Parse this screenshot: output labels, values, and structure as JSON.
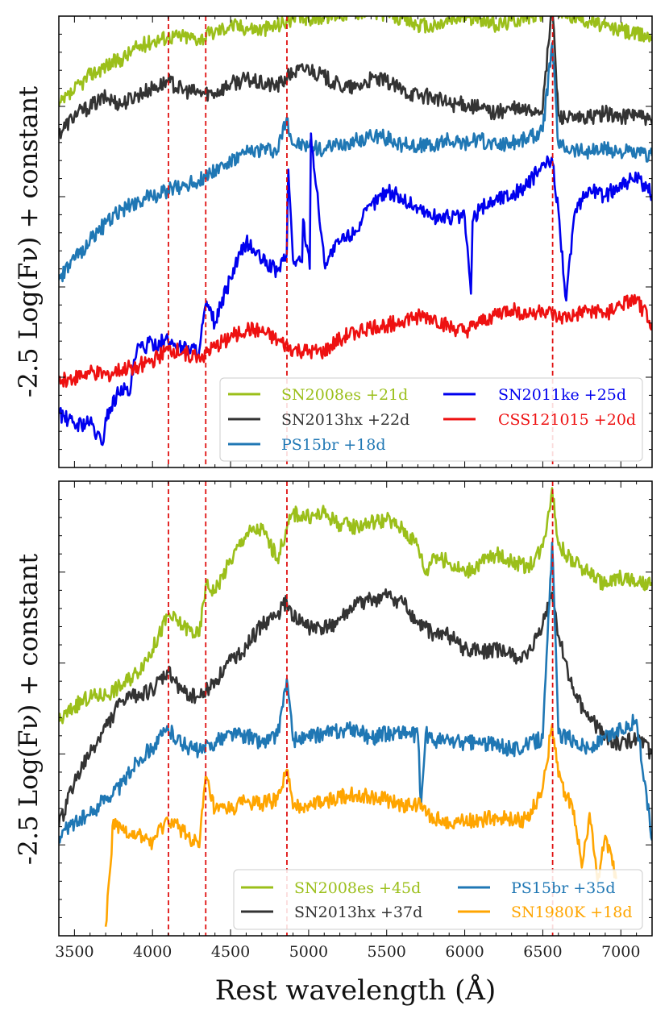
{
  "chart_data": [
    {
      "type": "line",
      "panel": "top",
      "ylabel": "-2.5 Log(Fν) + constant",
      "xlim": [
        3400,
        7200
      ],
      "ylim": [
        0,
        10
      ],
      "vlines": [
        4102,
        4341,
        4861,
        6563
      ],
      "legend_position": "lower-right",
      "series": [
        {
          "name": "SN2008es +21d",
          "color": "#9bbf1a",
          "x": [
            3400,
            3500,
            3600,
            3700,
            3800,
            3900,
            4000,
            4100,
            4200,
            4300,
            4400,
            4500,
            4600,
            4700,
            4800,
            4900,
            5000,
            5100,
            5200,
            5300,
            5400,
            5500,
            5600,
            5700,
            5800,
            5900,
            6000,
            6100,
            6200,
            6300,
            6400,
            6500,
            6560,
            6600,
            6700,
            6800,
            6900,
            7000,
            7100,
            7200
          ],
          "y": [
            8.0,
            8.35,
            8.7,
            8.9,
            9.05,
            9.3,
            9.45,
            9.55,
            9.55,
            9.5,
            9.65,
            9.8,
            9.75,
            9.7,
            9.8,
            9.95,
            9.95,
            10.0,
            10.05,
            10.1,
            10.1,
            10.05,
            9.95,
            9.8,
            9.75,
            9.9,
            10.0,
            9.95,
            9.8,
            9.9,
            10.0,
            10.05,
            10.35,
            10.1,
            10.0,
            9.9,
            9.75,
            9.7,
            9.6,
            9.55
          ]
        },
        {
          "name": "SN2013hx +22d",
          "color": "#333333",
          "x": [
            3400,
            3500,
            3600,
            3700,
            3800,
            3900,
            4000,
            4100,
            4200,
            4300,
            4400,
            4500,
            4600,
            4700,
            4800,
            4900,
            5000,
            5100,
            5200,
            5300,
            5400,
            5500,
            5600,
            5700,
            5800,
            5900,
            6000,
            6100,
            6200,
            6300,
            6400,
            6500,
            6560,
            6600,
            6700,
            6800,
            6900,
            7000,
            7100,
            7200
          ],
          "y": [
            7.4,
            7.8,
            8.0,
            8.2,
            8.05,
            8.25,
            8.4,
            8.55,
            8.35,
            8.3,
            8.3,
            8.5,
            8.6,
            8.5,
            8.45,
            8.75,
            8.85,
            8.65,
            8.45,
            8.4,
            8.6,
            8.55,
            8.35,
            8.25,
            8.2,
            8.05,
            8.05,
            7.95,
            7.85,
            7.95,
            7.9,
            7.95,
            10.3,
            7.8,
            7.7,
            7.75,
            7.85,
            7.75,
            7.85,
            7.6
          ]
        },
        {
          "name": "PS15br +18d",
          "color": "#1f77b4",
          "x": [
            3400,
            3500,
            3600,
            3700,
            3800,
            3900,
            4000,
            4100,
            4200,
            4300,
            4400,
            4500,
            4600,
            4700,
            4800,
            4860,
            4900,
            5000,
            5100,
            5200,
            5300,
            5400,
            5500,
            5600,
            5700,
            5800,
            5900,
            6000,
            6100,
            6200,
            6300,
            6400,
            6500,
            6560,
            6600,
            6700,
            6800,
            6900,
            7000,
            7100,
            7200
          ],
          "y": [
            4.15,
            4.6,
            5.05,
            5.4,
            5.7,
            5.9,
            6.0,
            6.15,
            6.25,
            6.35,
            6.6,
            6.75,
            6.95,
            7.05,
            7.0,
            7.75,
            7.15,
            7.1,
            7.05,
            7.15,
            7.25,
            7.35,
            7.3,
            7.15,
            7.15,
            7.1,
            7.25,
            7.2,
            7.25,
            7.15,
            7.2,
            7.3,
            7.45,
            9.4,
            7.15,
            7.05,
            7.0,
            7.05,
            7.0,
            6.95,
            6.9
          ]
        },
        {
          "name": "SN2011ke +25d",
          "color": "#0000ee",
          "x": [
            3400,
            3500,
            3600,
            3680,
            3700,
            3800,
            3850,
            3900,
            4000,
            4100,
            4200,
            4300,
            4340,
            4400,
            4500,
            4600,
            4700,
            4800,
            4860,
            4870,
            4900,
            4958,
            4965,
            5007,
            5015,
            5100,
            5200,
            5300,
            5400,
            5500,
            5600,
            5700,
            5800,
            5900,
            6000,
            6040,
            6050,
            6100,
            6200,
            6300,
            6400,
            6500,
            6563,
            6600,
            6650,
            6700,
            6800,
            6900,
            7000,
            7100,
            7200
          ],
          "y": [
            1.2,
            0.95,
            1.0,
            0.5,
            1.1,
            1.8,
            1.6,
            2.6,
            2.75,
            2.8,
            2.65,
            2.6,
            3.6,
            3.2,
            4.2,
            5.0,
            4.6,
            4.35,
            4.75,
            6.6,
            4.6,
            4.55,
            5.5,
            4.4,
            7.4,
            4.55,
            5.0,
            5.25,
            5.8,
            6.15,
            5.95,
            5.75,
            5.55,
            5.55,
            5.55,
            3.85,
            5.45,
            5.75,
            5.95,
            6.05,
            6.25,
            6.7,
            6.75,
            5.7,
            3.7,
            5.55,
            6.2,
            6.0,
            6.3,
            6.4,
            6.05
          ]
        },
        {
          "name": "CSS121015 +20d",
          "color": "#ee1111",
          "x": [
            3400,
            3500,
            3600,
            3700,
            3800,
            3900,
            4000,
            4100,
            4200,
            4300,
            4400,
            4500,
            4600,
            4700,
            4800,
            4900,
            5000,
            5100,
            5200,
            5300,
            5400,
            5500,
            5600,
            5700,
            5800,
            5900,
            6000,
            6100,
            6200,
            6300,
            6400,
            6500,
            6600,
            6700,
            6800,
            6900,
            7000,
            7100,
            7200
          ],
          "y": [
            1.9,
            2.0,
            2.1,
            2.05,
            2.15,
            2.25,
            2.35,
            2.6,
            2.55,
            2.45,
            2.65,
            2.9,
            3.05,
            3.0,
            2.8,
            2.6,
            2.55,
            2.55,
            2.85,
            3.0,
            3.1,
            3.15,
            3.25,
            3.35,
            3.3,
            3.1,
            3.0,
            3.2,
            3.4,
            3.5,
            3.4,
            3.5,
            3.3,
            3.35,
            3.5,
            3.4,
            3.6,
            3.7,
            3.2
          ]
        }
      ],
      "legend": {
        "col1": [
          {
            "label": "SN2008es +21d",
            "color": "#9bbf1a"
          },
          {
            "label": "SN2013hx +22d",
            "color": "#333333"
          },
          {
            "label": "PS15br +18d",
            "color": "#1f77b4"
          }
        ],
        "col2": [
          {
            "label": "SN2011ke +25d",
            "color": "#0000ee"
          },
          {
            "label": "CSS121015 +20d",
            "color": "#ee1111"
          }
        ]
      }
    },
    {
      "type": "line",
      "panel": "bottom",
      "ylabel": "-2.5 Log(Fν) + constant",
      "xlabel": "Rest wavelength (Å)",
      "xlim": [
        3400,
        7200
      ],
      "xticks": [
        3500,
        4000,
        4500,
        5000,
        5500,
        6000,
        6500,
        7000
      ],
      "ylim": [
        0,
        10
      ],
      "vlines": [
        4102,
        4341,
        4861,
        6563
      ],
      "legend_position": "lower-right",
      "series": [
        {
          "name": "SN2008es +45d",
          "color": "#9bbf1a",
          "x": [
            3400,
            3500,
            3600,
            3700,
            3800,
            3900,
            4000,
            4100,
            4200,
            4300,
            4340,
            4400,
            4500,
            4600,
            4700,
            4800,
            4860,
            4900,
            5000,
            5100,
            5200,
            5300,
            5400,
            5500,
            5600,
            5700,
            5750,
            5800,
            5900,
            6000,
            6100,
            6200,
            6300,
            6400,
            6500,
            6560,
            6600,
            6700,
            6800,
            6900,
            7000,
            7100,
            7200
          ],
          "y": [
            4.7,
            5.05,
            5.25,
            5.3,
            5.5,
            5.8,
            6.3,
            7.05,
            6.8,
            6.6,
            7.7,
            7.6,
            8.25,
            8.85,
            8.95,
            8.3,
            8.95,
            9.3,
            9.2,
            9.3,
            9.05,
            9.0,
            9.1,
            9.15,
            8.95,
            8.6,
            7.95,
            8.4,
            8.2,
            8.0,
            8.2,
            8.4,
            8.25,
            8.1,
            8.55,
            9.85,
            8.6,
            8.2,
            8.0,
            7.7,
            7.9,
            7.75,
            7.7
          ]
        },
        {
          "name": "SN2013hx +37d",
          "color": "#333333",
          "x": [
            3400,
            3500,
            3600,
            3700,
            3800,
            3900,
            4000,
            4100,
            4200,
            4300,
            4400,
            4500,
            4600,
            4700,
            4800,
            4860,
            4900,
            5000,
            5100,
            5200,
            5300,
            5400,
            5500,
            5600,
            5700,
            5800,
            5900,
            6000,
            6100,
            6200,
            6300,
            6400,
            6500,
            6560,
            6600,
            6700,
            6800,
            6900,
            7000,
            7100,
            7200
          ],
          "y": [
            2.4,
            3.4,
            4.0,
            4.6,
            5.15,
            5.3,
            5.4,
            5.8,
            5.35,
            5.25,
            5.6,
            6.05,
            6.35,
            6.85,
            7.05,
            7.35,
            7.0,
            6.8,
            6.75,
            6.95,
            7.25,
            7.4,
            7.45,
            7.35,
            6.85,
            6.65,
            6.6,
            6.3,
            6.25,
            6.3,
            6.15,
            6.1,
            6.85,
            7.55,
            6.6,
            5.3,
            4.8,
            4.4,
            4.2,
            4.35,
            4.0
          ]
        },
        {
          "name": "PS15br +35d",
          "color": "#1f77b4",
          "x": [
            3400,
            3500,
            3600,
            3700,
            3800,
            3900,
            4000,
            4100,
            4200,
            4300,
            4400,
            4500,
            4600,
            4700,
            4800,
            4860,
            4900,
            5000,
            5100,
            5200,
            5300,
            5400,
            5500,
            5600,
            5700,
            5720,
            5750,
            5800,
            5900,
            6000,
            6100,
            6200,
            6300,
            6400,
            6500,
            6560,
            6600,
            6700,
            6800,
            6900,
            7000,
            7100,
            7200
          ],
          "y": [
            2.2,
            2.5,
            2.65,
            3.05,
            3.3,
            3.85,
            4.15,
            4.55,
            4.2,
            4.05,
            4.25,
            4.45,
            4.4,
            4.25,
            4.4,
            5.65,
            4.3,
            4.35,
            4.45,
            4.5,
            4.55,
            4.35,
            4.45,
            4.5,
            4.4,
            2.85,
            4.45,
            4.3,
            4.3,
            4.25,
            4.25,
            4.2,
            4.1,
            4.2,
            4.35,
            8.65,
            4.45,
            4.3,
            4.1,
            4.35,
            4.55,
            4.75,
            2.1
          ]
        },
        {
          "name": "SN1980K +18d",
          "color": "#ffa500",
          "x": [
            3700,
            3750,
            3800,
            3900,
            4000,
            4100,
            4200,
            4300,
            4340,
            4400,
            4500,
            4600,
            4700,
            4800,
            4860,
            4900,
            5000,
            5100,
            5200,
            5300,
            5400,
            5500,
            5600,
            5700,
            5800,
            5900,
            6000,
            6100,
            6200,
            6300,
            6400,
            6500,
            6560,
            6600,
            6700,
            6750,
            6800,
            6850,
            6900,
            6970
          ],
          "y": [
            0.2,
            2.55,
            2.35,
            2.2,
            2.05,
            2.55,
            2.3,
            1.95,
            3.5,
            2.75,
            2.8,
            2.95,
            2.9,
            3.0,
            3.65,
            2.8,
            2.9,
            2.95,
            3.05,
            3.1,
            3.05,
            3.0,
            2.85,
            2.9,
            2.6,
            2.5,
            2.5,
            2.55,
            2.6,
            2.55,
            2.55,
            3.25,
            4.65,
            3.5,
            2.75,
            1.5,
            2.7,
            1.2,
            2.2,
            1.25
          ]
        }
      ],
      "legend": {
        "col1": [
          {
            "label": "SN2008es +45d",
            "color": "#9bbf1a"
          },
          {
            "label": "SN2013hx +37d",
            "color": "#333333"
          }
        ],
        "col2": [
          {
            "label": "PS15br +35d",
            "color": "#1f77b4"
          },
          {
            "label": "SN1980K +18d",
            "color": "#ffa500"
          }
        ]
      }
    }
  ]
}
